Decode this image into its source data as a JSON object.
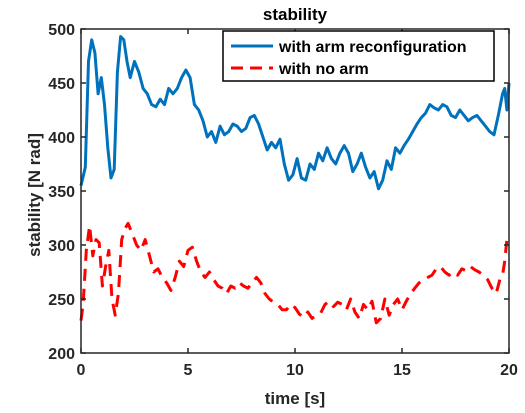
{
  "chart_data": {
    "type": "line",
    "title": "stability",
    "xlabel": "time [s]",
    "ylabel": "stability [N rad]",
    "xlim": [
      0,
      20
    ],
    "ylim": [
      200,
      500
    ],
    "xticks": [
      0,
      5,
      10,
      15,
      20
    ],
    "yticks": [
      200,
      250,
      300,
      350,
      400,
      450,
      500
    ],
    "grid": false,
    "legend_position": "top-right",
    "series": [
      {
        "name": "with arm reconfiguration",
        "color": "#0072BD",
        "line_style": "solid",
        "x": [
          0,
          0.2,
          0.35,
          0.5,
          0.65,
          0.8,
          0.95,
          1.1,
          1.25,
          1.4,
          1.55,
          1.7,
          1.85,
          2.0,
          2.15,
          2.3,
          2.5,
          2.7,
          2.9,
          3.1,
          3.3,
          3.5,
          3.7,
          3.9,
          4.1,
          4.3,
          4.5,
          4.7,
          4.9,
          5.1,
          5.3,
          5.5,
          5.7,
          5.9,
          6.1,
          6.3,
          6.5,
          6.7,
          6.9,
          7.1,
          7.3,
          7.5,
          7.7,
          7.9,
          8.1,
          8.3,
          8.5,
          8.7,
          8.9,
          9.1,
          9.3,
          9.5,
          9.7,
          9.9,
          10.1,
          10.3,
          10.5,
          10.7,
          10.9,
          11.1,
          11.3,
          11.5,
          11.7,
          11.9,
          12.1,
          12.3,
          12.5,
          12.7,
          12.9,
          13.1,
          13.3,
          13.5,
          13.7,
          13.9,
          14.1,
          14.3,
          14.5,
          14.7,
          14.9,
          15.1,
          15.3,
          15.5,
          15.7,
          15.9,
          16.1,
          16.3,
          16.5,
          16.7,
          16.9,
          17.1,
          17.3,
          17.5,
          17.7,
          17.9,
          18.1,
          18.3,
          18.5,
          18.7,
          18.9,
          19.1,
          19.3,
          19.5,
          19.7,
          19.8,
          19.9,
          20.0
        ],
        "values": [
          355,
          372,
          470,
          490,
          478,
          440,
          455,
          430,
          390,
          362,
          370,
          460,
          493,
          490,
          470,
          455,
          470,
          460,
          445,
          440,
          430,
          428,
          435,
          430,
          445,
          440,
          445,
          455,
          462,
          455,
          430,
          425,
          415,
          400,
          405,
          395,
          410,
          402,
          405,
          412,
          410,
          405,
          408,
          418,
          420,
          412,
          400,
          388,
          395,
          390,
          398,
          375,
          360,
          365,
          380,
          362,
          360,
          375,
          370,
          385,
          378,
          390,
          380,
          375,
          385,
          392,
          385,
          368,
          375,
          385,
          372,
          362,
          368,
          352,
          360,
          378,
          370,
          390,
          385,
          392,
          398,
          405,
          412,
          418,
          422,
          430,
          427,
          425,
          430,
          428,
          420,
          418,
          425,
          420,
          415,
          418,
          420,
          415,
          410,
          405,
          402,
          420,
          440,
          445,
          425,
          450
        ]
      },
      {
        "name": "with no arm",
        "color": "#FF0000",
        "line_style": "dashed",
        "x": [
          0,
          0.1,
          0.25,
          0.4,
          0.55,
          0.7,
          0.85,
          1.0,
          1.15,
          1.3,
          1.45,
          1.6,
          1.75,
          1.9,
          2.05,
          2.2,
          2.4,
          2.6,
          2.8,
          3.0,
          3.2,
          3.4,
          3.6,
          3.8,
          4.0,
          4.2,
          4.4,
          4.6,
          4.8,
          5.0,
          5.2,
          5.4,
          5.6,
          5.8,
          6.0,
          6.2,
          6.4,
          6.6,
          6.8,
          7.0,
          7.2,
          7.4,
          7.6,
          7.8,
          8.0,
          8.2,
          8.4,
          8.6,
          8.8,
          9.0,
          9.2,
          9.4,
          9.6,
          9.8,
          10.0,
          10.2,
          10.4,
          10.6,
          10.8,
          11.0,
          11.2,
          11.4,
          11.6,
          11.8,
          12.0,
          12.2,
          12.4,
          12.6,
          12.8,
          13.0,
          13.2,
          13.4,
          13.6,
          13.8,
          14.0,
          14.2,
          14.4,
          14.6,
          14.8,
          15.0,
          15.2,
          15.4,
          15.6,
          15.8,
          16.0,
          16.2,
          16.4,
          16.6,
          16.8,
          17.0,
          17.2,
          17.4,
          17.6,
          17.8,
          18.0,
          18.2,
          18.4,
          18.6,
          18.8,
          19.0,
          19.2,
          19.4,
          19.6,
          19.7,
          19.8,
          19.9,
          20.0
        ],
        "values": [
          230,
          245,
          295,
          318,
          290,
          305,
          302,
          262,
          280,
          295,
          250,
          235,
          255,
          305,
          315,
          320,
          310,
          300,
          295,
          305,
          290,
          275,
          278,
          270,
          265,
          258,
          270,
          285,
          280,
          295,
          298,
          285,
          275,
          270,
          275,
          268,
          262,
          260,
          255,
          262,
          260,
          265,
          262,
          260,
          265,
          270,
          265,
          255,
          250,
          247,
          245,
          240,
          240,
          245,
          242,
          236,
          233,
          238,
          232,
          235,
          237,
          245,
          248,
          243,
          247,
          245,
          240,
          250,
          238,
          232,
          245,
          240,
          248,
          228,
          232,
          250,
          235,
          245,
          250,
          240,
          248,
          255,
          260,
          265,
          268,
          270,
          272,
          278,
          280,
          275,
          272,
          275,
          272,
          278,
          276,
          280,
          277,
          275,
          272,
          268,
          260,
          255,
          270,
          272,
          285,
          305,
          310
        ]
      }
    ]
  }
}
